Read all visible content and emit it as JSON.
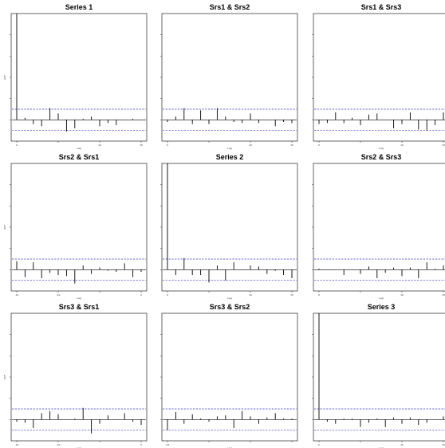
{
  "chart_data": [
    {
      "type": "bar",
      "title": "Series 1",
      "xlabel": "Lag",
      "ylabel": "ACF",
      "x_ticks": [
        "0",
        "",
        "10",
        "15"
      ],
      "y_ticks": [
        "",
        "",
        "",
        "",
        ""
      ],
      "ylim": [
        -0.2,
        1.0
      ],
      "ci": 0.1,
      "x": [
        0,
        1,
        2,
        3,
        4,
        5,
        6,
        7,
        8,
        9,
        10,
        11,
        12,
        13,
        14,
        15
      ],
      "values": [
        1.0,
        0.02,
        -0.04,
        -0.06,
        0.11,
        0.06,
        -0.11,
        -0.08,
        0.01,
        0.03,
        -0.06,
        -0.03,
        -0.05,
        0.0,
        0.01,
        0.0
      ]
    },
    {
      "type": "bar",
      "title": "Srs1 & Srs2",
      "xlabel": "Lag",
      "ylabel": "",
      "x_ticks": [
        "0",
        "",
        "10",
        "15"
      ],
      "y_ticks": [
        "",
        "",
        "",
        "",
        ""
      ],
      "ylim": [
        -0.2,
        1.0
      ],
      "ci": 0.1,
      "x": [
        0,
        1,
        2,
        3,
        4,
        5,
        6,
        7,
        8,
        9,
        10,
        11,
        12,
        13,
        14,
        15
      ],
      "values": [
        -0.02,
        0.03,
        0.11,
        -0.04,
        0.09,
        -0.04,
        0.11,
        0.03,
        -0.02,
        -0.03,
        0.06,
        -0.03,
        0.0,
        -0.06,
        -0.02,
        -0.03
      ]
    },
    {
      "type": "bar",
      "title": "Srs1 & Srs3",
      "xlabel": "Lag",
      "ylabel": "",
      "x_ticks": [
        "0",
        "",
        "10",
        "15"
      ],
      "y_ticks": [
        "",
        "",
        "",
        "",
        ""
      ],
      "ylim": [
        -0.2,
        1.0
      ],
      "ci": 0.1,
      "x": [
        0,
        1,
        2,
        3,
        4,
        5,
        6,
        7,
        8,
        9,
        10,
        11,
        12,
        13,
        14,
        15
      ],
      "values": [
        -0.04,
        -0.03,
        0.07,
        -0.03,
        0.02,
        -0.05,
        0.05,
        0.06,
        0.0,
        -0.08,
        -0.04,
        0.07,
        -0.09,
        -0.1,
        -0.05,
        0.07
      ]
    },
    {
      "type": "bar",
      "title": "Srs2 & Srs1",
      "xlabel": "Lag",
      "ylabel": "ACF",
      "x_ticks": [
        "-15",
        "-10",
        "",
        "0"
      ],
      "y_ticks": [
        "",
        "",
        "",
        "",
        ""
      ],
      "ylim": [
        -0.2,
        1.0
      ],
      "ci": 0.1,
      "x": [
        -15,
        -14,
        -13,
        -12,
        -11,
        -10,
        -9,
        -8,
        -7,
        -6,
        -5,
        -4,
        -3,
        -2,
        -1,
        0
      ],
      "values": [
        0.08,
        -0.07,
        0.07,
        -0.08,
        -0.03,
        -0.05,
        -0.06,
        -0.13,
        0.04,
        -0.04,
        0.02,
        -0.01,
        -0.02,
        0.06,
        -0.07,
        -0.02
      ]
    },
    {
      "type": "bar",
      "title": "Series 2",
      "xlabel": "Lag",
      "ylabel": "",
      "x_ticks": [
        "0",
        "",
        "10",
        "15"
      ],
      "y_ticks": [
        "",
        "",
        "",
        "",
        ""
      ],
      "ylim": [
        -0.2,
        1.0
      ],
      "ci": 0.1,
      "x": [
        0,
        1,
        2,
        3,
        4,
        5,
        6,
        7,
        8,
        9,
        10,
        11,
        12,
        13,
        14,
        15
      ],
      "values": [
        1.0,
        -0.05,
        0.11,
        -0.05,
        -0.05,
        -0.12,
        0.04,
        -0.1,
        0.07,
        0.0,
        0.04,
        0.03,
        -0.04,
        -0.01,
        -0.05,
        -0.08
      ]
    },
    {
      "type": "bar",
      "title": "Srs2 & Srs3",
      "xlabel": "Lag",
      "ylabel": "",
      "x_ticks": [
        "0",
        "",
        "10",
        "15"
      ],
      "y_ticks": [
        "",
        "",
        "",
        "",
        ""
      ],
      "ylim": [
        -0.2,
        1.0
      ],
      "ci": 0.1,
      "x": [
        0,
        1,
        2,
        3,
        4,
        5,
        6,
        7,
        8,
        9,
        10,
        11,
        12,
        13,
        14,
        15
      ],
      "values": [
        0.01,
        0.0,
        0.0,
        -0.05,
        0.0,
        -0.04,
        0.03,
        -0.08,
        -0.03,
        0.02,
        -0.06,
        0.02,
        -0.08,
        0.07,
        0.01,
        0.04
      ]
    },
    {
      "type": "bar",
      "title": "Srs3 & Srs1",
      "xlabel": "Lag",
      "ylabel": "ACF",
      "x_ticks": [
        "-15",
        "-10",
        "",
        "0"
      ],
      "y_ticks": [
        "",
        "",
        "",
        "",
        ""
      ],
      "ylim": [
        -0.2,
        1.0
      ],
      "ci": 0.1,
      "x": [
        -15,
        -14,
        -13,
        -12,
        -11,
        -10,
        -9,
        -8,
        -7,
        -6,
        -5,
        -4,
        -3,
        -2,
        -1,
        0
      ],
      "values": [
        -0.02,
        -0.03,
        -0.08,
        0.06,
        0.08,
        0.05,
        0.0,
        0.01,
        0.11,
        -0.13,
        -0.04,
        0.04,
        0.0,
        0.06,
        -0.02,
        -0.05
      ]
    },
    {
      "type": "bar",
      "title": "Srs3 & Srs2",
      "xlabel": "Lag",
      "ylabel": "",
      "x_ticks": [
        "-15",
        "",
        "",
        ""
      ],
      "y_ticks": [
        "",
        "",
        "",
        "",
        ""
      ],
      "ylim": [
        -0.2,
        1.0
      ],
      "ci": 0.1,
      "x": [
        -15,
        -14,
        -13,
        -12,
        -11,
        -10,
        -9,
        -8,
        -7,
        -6,
        -5,
        -4,
        -3,
        -2,
        -1,
        0
      ],
      "values": [
        -0.1,
        0.07,
        -0.04,
        0.05,
        0.01,
        -0.02,
        0.03,
        0.04,
        -0.08,
        0.08,
        0.03,
        -0.04,
        0.02,
        0.06,
        0.01,
        0.01
      ]
    },
    {
      "type": "bar",
      "title": "Series 3",
      "xlabel": "Lag",
      "ylabel": "",
      "x_ticks": [
        "0",
        "",
        "10",
        "15"
      ],
      "y_ticks": [
        "",
        "",
        "",
        "",
        ""
      ],
      "ylim": [
        -0.2,
        1.0
      ],
      "ci": 0.1,
      "x": [
        0,
        1,
        2,
        3,
        4,
        5,
        6,
        7,
        8,
        9,
        10,
        11,
        12,
        13,
        14,
        15
      ],
      "values": [
        1.0,
        -0.02,
        -0.04,
        0.01,
        0.01,
        -0.07,
        -0.03,
        0.01,
        -0.07,
        0.02,
        -0.04,
        0.02,
        -0.05,
        -0.03,
        0.0,
        0.03
      ]
    }
  ]
}
